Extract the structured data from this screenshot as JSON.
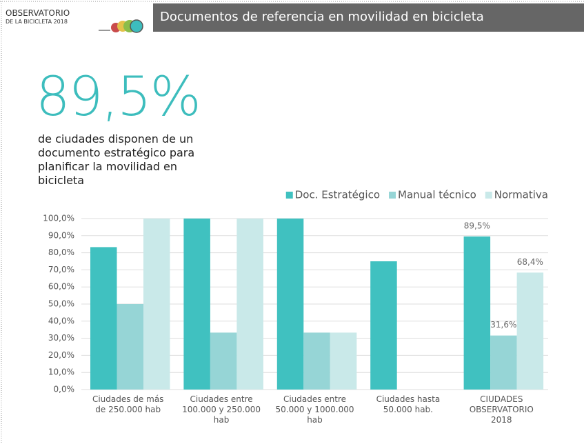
{
  "header": {
    "logo_line1": "OBSERVATORIO",
    "logo_line2": "DE LA BICICLETA 2018",
    "title": "Documentos de referencia en movilidad en bicicleta"
  },
  "highlight": {
    "figure": "89,5%",
    "caption": "de ciudades disponen de un documento estratégico para planificar la movilidad en bicicleta"
  },
  "chart_data": {
    "type": "bar",
    "categories": [
      "Ciudades de más\nde 250.000 hab",
      "Ciudades entre\n100.000 y 250.000\nhab",
      "Ciudades entre\n50.000 y 1000.000\nhab",
      "Ciudades hasta\n50.000 hab.",
      "CIUDADES\nOBSERVATORIO\n2018"
    ],
    "series": [
      {
        "name": "Doc. Estratégico",
        "color": "#40c1c0",
        "values": [
          83.3,
          100,
          100,
          75,
          89.5
        ],
        "value_labels": [
          null,
          null,
          null,
          null,
          "89,5%"
        ]
      },
      {
        "name": "Manual técnico",
        "color": "#96d5d6",
        "values": [
          50,
          33.3,
          33.3,
          0,
          31.6
        ],
        "value_labels": [
          null,
          null,
          null,
          null,
          "31,6%"
        ]
      },
      {
        "name": "Normativa",
        "color": "#c9e9e9",
        "values": [
          100,
          100,
          33.3,
          0,
          68.4
        ],
        "value_labels": [
          null,
          null,
          null,
          null,
          "68,4%"
        ]
      }
    ],
    "ylim": [
      0,
      100
    ],
    "yticks": [
      {
        "value": 0,
        "label": "0,0%"
      },
      {
        "value": 10,
        "label": "10,0%"
      },
      {
        "value": 20,
        "label": "20,0%"
      },
      {
        "value": 30,
        "label": "30,0%"
      },
      {
        "value": 40,
        "label": "40,0%"
      },
      {
        "value": 50,
        "label": "50,0%"
      },
      {
        "value": 60,
        "label": "60,0%"
      },
      {
        "value": 70,
        "label": "70,0%"
      },
      {
        "value": 80,
        "label": "80,0%"
      },
      {
        "value": 90,
        "label": "90,0%"
      },
      {
        "value": 100,
        "label": "100,0%"
      }
    ],
    "grid": true,
    "legend": "top-right"
  }
}
